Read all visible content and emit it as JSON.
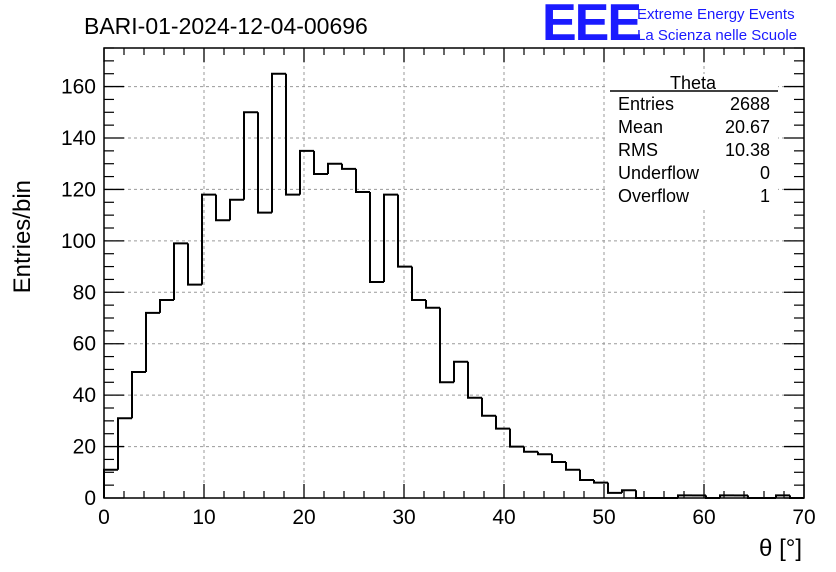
{
  "header": {
    "run_id": "BARI-01-2024-12-04-00696",
    "logo_text": "EEE",
    "logo_line1": "Extreme Energy Events",
    "logo_line2": "La Scienza nelle Scuole"
  },
  "stats_box": {
    "title": "Theta",
    "rows": [
      {
        "label": "Entries",
        "value": "2688"
      },
      {
        "label": "Mean",
        "value": "20.67"
      },
      {
        "label": "RMS",
        "value": "10.38"
      },
      {
        "label": "Underflow",
        "value": "0"
      },
      {
        "label": "Overflow",
        "value": "1"
      }
    ]
  },
  "chart_data": {
    "type": "bar",
    "style": "step-histogram",
    "xlabel": "θ [°]",
    "ylabel": "Entries/bin",
    "xlim": [
      0,
      70
    ],
    "ylim": [
      0,
      175
    ],
    "grid": true,
    "bin_width": 1.4,
    "x_ticks": [
      0,
      10,
      20,
      30,
      40,
      50,
      60,
      70
    ],
    "y_ticks": [
      0,
      20,
      40,
      60,
      80,
      100,
      120,
      140,
      160
    ],
    "values": [
      11,
      31,
      49,
      72,
      77,
      99,
      83,
      118,
      108,
      116,
      150,
      111,
      165,
      118,
      135,
      126,
      130,
      128,
      119,
      84,
      118,
      90,
      77,
      74,
      45,
      53,
      39,
      32,
      27,
      20,
      18,
      17,
      14,
      11,
      7,
      6,
      2,
      3,
      0,
      0,
      0,
      1,
      1,
      0,
      1,
      1,
      0,
      0,
      1,
      0
    ],
    "line_color": "#000000"
  }
}
